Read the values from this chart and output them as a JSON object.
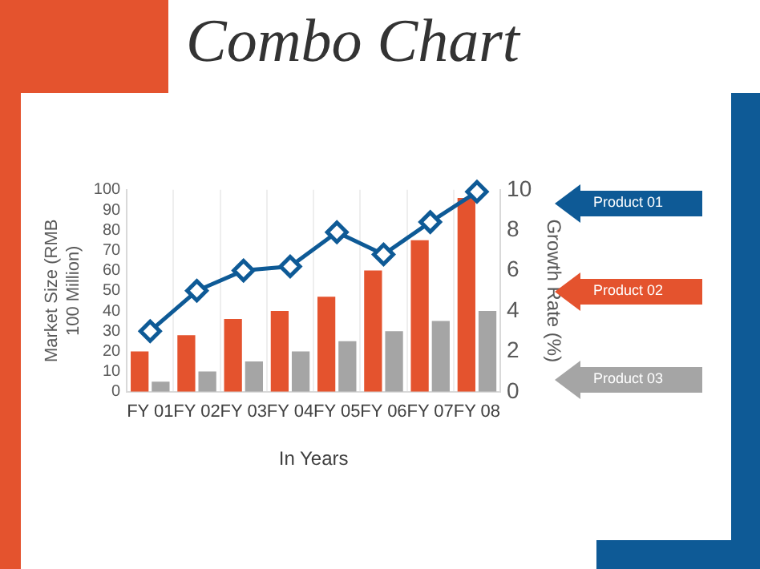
{
  "chart_data": {
    "type": "bar",
    "title": "Combo Chart",
    "xlabel": "In Years",
    "ylabel": "Market Size (RMB 100 Million)",
    "y2label": "Growth Rate (%)",
    "categories": [
      "FY 01",
      "FY 02",
      "FY 03",
      "FY 04",
      "FY 05",
      "FY 06",
      "FY 07",
      "FY 08"
    ],
    "series": [
      {
        "name": "Product 01",
        "type": "line",
        "axis": "y2",
        "color": "#0e5a96",
        "values": [
          3,
          5,
          6,
          6.2,
          7.9,
          6.8,
          8.4,
          9.9
        ]
      },
      {
        "name": "Product 02",
        "color": "#e4532e",
        "values": [
          20,
          28,
          36,
          40,
          47,
          60,
          75,
          96
        ]
      },
      {
        "name": "Product 03",
        "color": "#a5a5a5",
        "values": [
          5,
          10,
          15,
          20,
          25,
          30,
          35,
          40
        ]
      }
    ],
    "ylim": [
      0,
      100
    ],
    "yticks": [
      0,
      10,
      20,
      30,
      40,
      50,
      60,
      70,
      80,
      90,
      100
    ],
    "y2lim": [
      0,
      10
    ],
    "y2ticks": [
      0,
      2,
      4,
      6,
      8,
      10
    ],
    "grid": "x",
    "legend": "right",
    "marker": "diamond",
    "line_style": "solid"
  }
}
